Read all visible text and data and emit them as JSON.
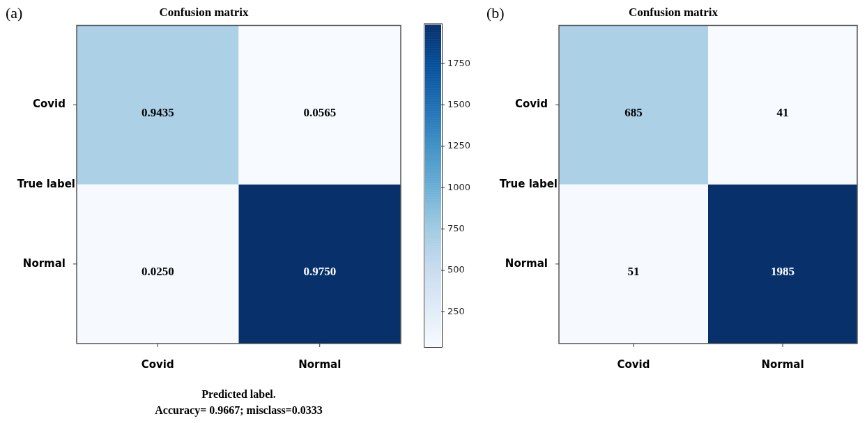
{
  "chart_data": [
    {
      "type": "heatmap",
      "title": "Confusion matrix",
      "xlabel": "Predicted label.",
      "ylabel": "True label",
      "categories": [
        "Covid",
        "Normal"
      ],
      "y_categories": [
        "Covid",
        "Normal"
      ],
      "cells": [
        [
          685,
          41
        ],
        [
          51,
          1985
        ]
      ],
      "clim": [
        41,
        1985
      ],
      "cticks": [
        250,
        500,
        750,
        1000,
        1250,
        1500,
        1750
      ],
      "annotations": [
        "(a)",
        "0.9435",
        "0.0565",
        "0.0250",
        "0.9750",
        "Accuracy= 0.9667; misclass=0.0333"
      ]
    },
    {
      "type": "heatmap",
      "title": "Confusion matrix",
      "ylabel": "True label",
      "categories": [
        "Covid",
        "Normal"
      ],
      "y_categories": [
        "Covid",
        "Normal"
      ],
      "cells": [
        [
          685,
          41
        ],
        [
          51,
          1985
        ]
      ],
      "data_labels": true,
      "annotations": [
        "(b)"
      ]
    }
  ]
}
